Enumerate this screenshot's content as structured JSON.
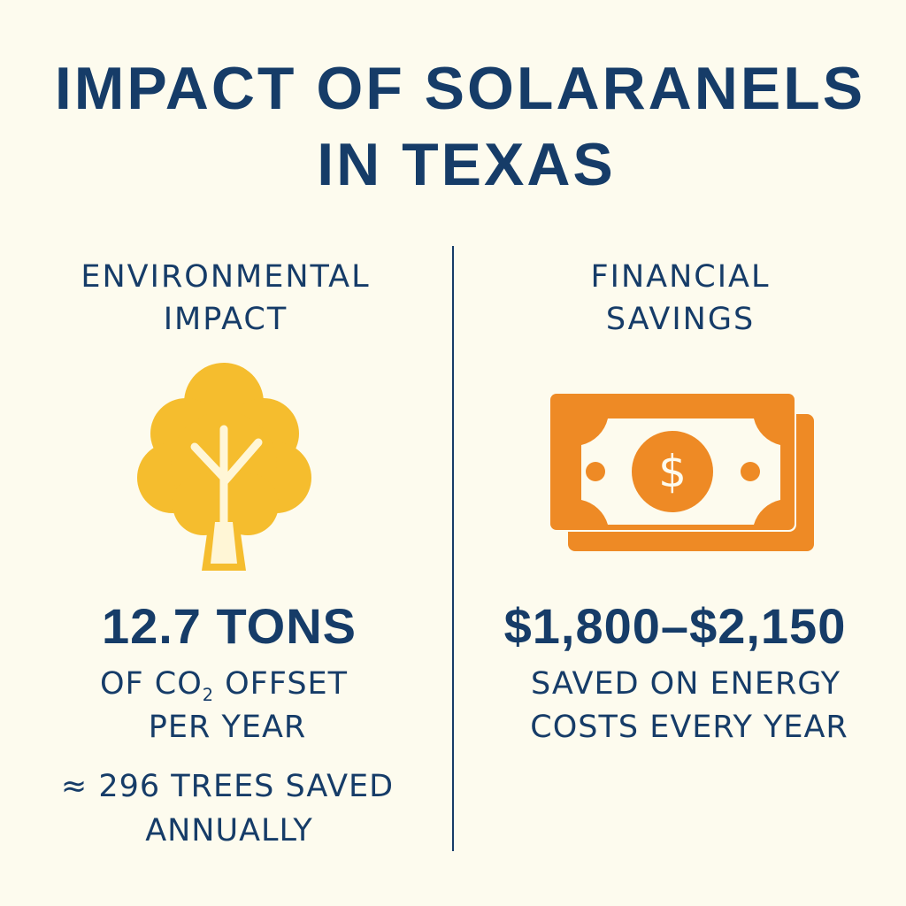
{
  "title": {
    "line1": "IMPACT OF SOLARANELS",
    "line2": "IN TEXAS"
  },
  "environmental": {
    "heading_line1": "ENVIRONMENTAL",
    "heading_line2": "IMPACT",
    "icon": "tree-icon",
    "value": "12.7 TONS",
    "desc_prefix": "OF CO",
    "desc_sub": "2",
    "desc_suffix": " OFFSET",
    "desc_line2": "PER YEAR",
    "trees_line1": "≈ 296 TREES SAVED",
    "trees_line2": "ANNUALLY"
  },
  "financial": {
    "heading_line1": "FINANCIAL",
    "heading_line2": "SAVINGS",
    "icon": "money-bill-icon",
    "value": "$1,800–$2,150",
    "desc_line1": "SAVED ON ENERGY",
    "desc_line2": "COSTS EVERY YEAR"
  },
  "colors": {
    "navy": "#163c68",
    "yellow": "#f5bd2e",
    "orange": "#ee8a25",
    "background": "#fdfbee"
  }
}
